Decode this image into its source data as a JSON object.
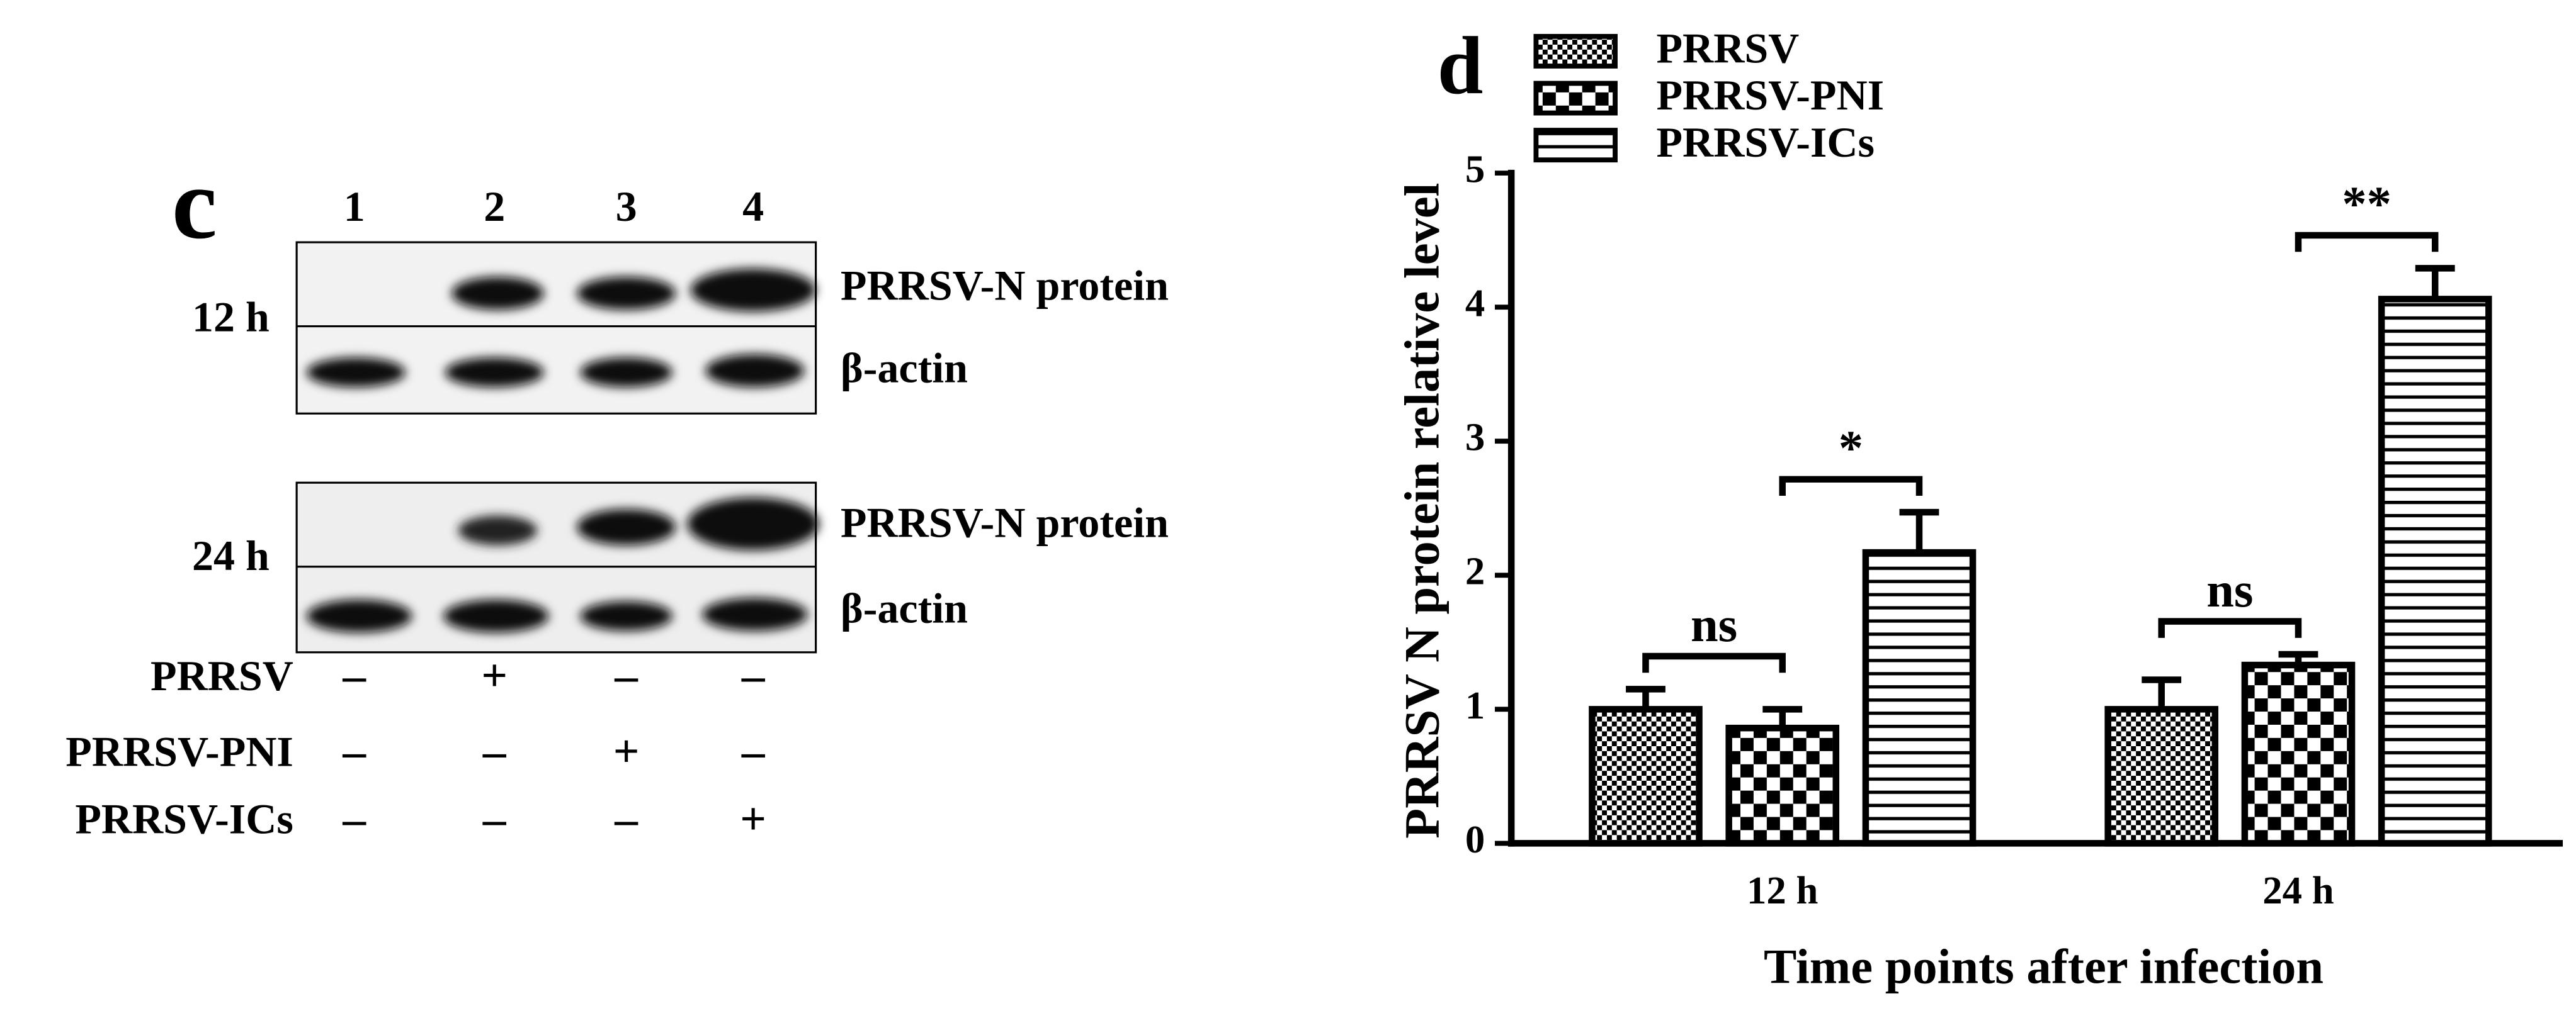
{
  "blot": {
    "panel_label": "c",
    "lanes": [
      "1",
      "2",
      "3",
      "4"
    ],
    "times": [
      "12 h",
      "24 h"
    ],
    "bands": [
      "PRRSV-N protein",
      "β-actin"
    ],
    "conditions": [
      {
        "name": "PRRSV",
        "signs": [
          "–",
          "+",
          "–",
          "–"
        ]
      },
      {
        "name": "PRRSV-PNI",
        "signs": [
          "–",
          "–",
          "+",
          "–"
        ]
      },
      {
        "name": "PRRSV-ICs",
        "signs": [
          "–",
          "–",
          "–",
          "+"
        ]
      }
    ]
  },
  "chart_data": {
    "type": "bar",
    "panel_label": "d",
    "y_label": "PRRSV N protein relative level",
    "x_label": "Time points after infection",
    "categories": [
      "12 h",
      "24 h"
    ],
    "series": [
      {
        "name": "PRRSV",
        "color": "#000000",
        "pattern": "fine-check",
        "values": [
          1.0,
          1.0
        ],
        "errors": [
          0.15,
          0.22
        ]
      },
      {
        "name": "PRRSV-PNI",
        "color": "#000000",
        "pattern": "check",
        "values": [
          0.86,
          1.33
        ],
        "errors": [
          0.14,
          0.08
        ]
      },
      {
        "name": "PRRSV-ICs",
        "color": "#000000",
        "pattern": "hstripe",
        "values": [
          2.17,
          4.06
        ],
        "errors": [
          0.3,
          0.23
        ]
      }
    ],
    "annotations": [
      "ns",
      "*",
      "ns",
      "**"
    ],
    "ylim": [
      0,
      5
    ],
    "yticks": [
      0,
      1,
      2,
      3,
      4,
      5
    ],
    "grid": false,
    "legend": "top-left"
  }
}
